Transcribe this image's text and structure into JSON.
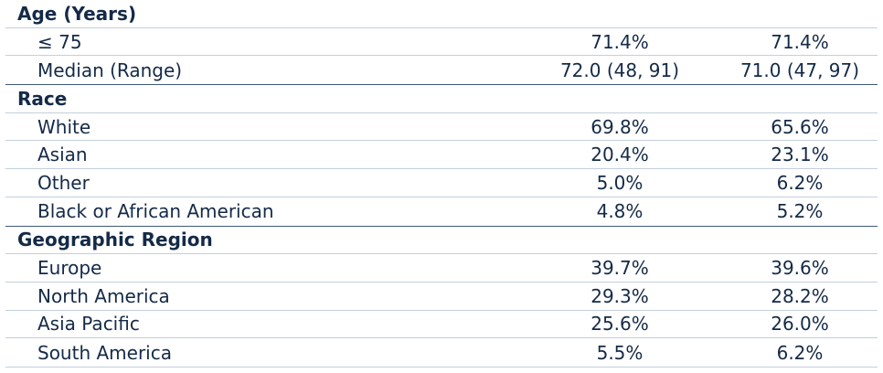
{
  "sections": [
    {
      "title": "Age (Years)",
      "rows": [
        {
          "label": "≤ 75",
          "col1": "71.4%",
          "col2": "71.4%"
        },
        {
          "label": "Median (Range)",
          "col1": "72.0 (48, 91)",
          "col2": "71.0 (47, 97)"
        }
      ]
    },
    {
      "title": "Race",
      "rows": [
        {
          "label": "White",
          "col1": "69.8%",
          "col2": "65.6%"
        },
        {
          "label": "Asian",
          "col1": "20.4%",
          "col2": "23.1%"
        },
        {
          "label": "Other",
          "col1": "5.0%",
          "col2": "6.2%"
        },
        {
          "label": "Black or African American",
          "col1": "4.8%",
          "col2": "5.2%"
        }
      ]
    },
    {
      "title": "Geographic Region",
      "rows": [
        {
          "label": "Europe",
          "col1": "39.7%",
          "col2": "39.6%"
        },
        {
          "label": "North America",
          "col1": "29.3%",
          "col2": "28.2%"
        },
        {
          "label": "Asia Pacific",
          "col1": "25.6%",
          "col2": "26.0%"
        },
        {
          "label": "South America",
          "col1": "5.5%",
          "col2": "6.2%"
        }
      ]
    }
  ]
}
